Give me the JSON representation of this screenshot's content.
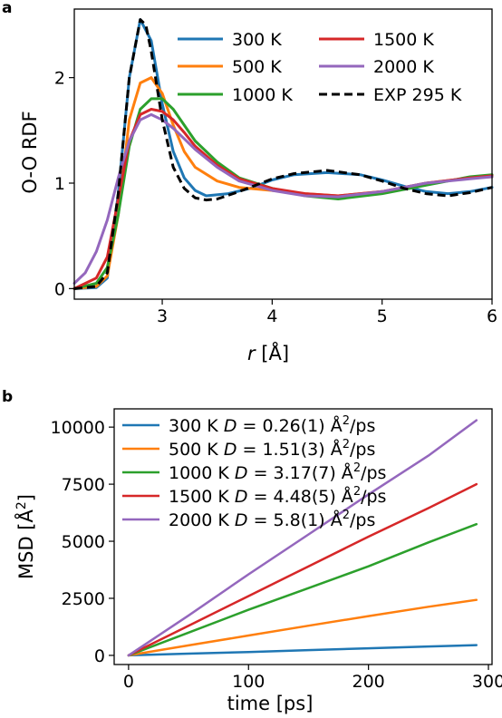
{
  "chart_data": [
    {
      "panel": "a",
      "type": "line",
      "xlabel_italic": "r",
      "xlabel_rest": " [Å]",
      "ylabel": "O-O RDF",
      "xlim": [
        2.2,
        6.0
      ],
      "ylim": [
        -0.1,
        2.65
      ],
      "xticks": [
        3,
        4,
        5,
        6
      ],
      "yticks": [
        0,
        1,
        2
      ],
      "legend_placement": "upper right, two columns",
      "grid": false,
      "series": [
        {
          "name": "300 K",
          "color": "#1f77b4",
          "dash": "",
          "x": [
            2.2,
            2.4,
            2.5,
            2.6,
            2.7,
            2.8,
            2.9,
            3.0,
            3.1,
            3.2,
            3.3,
            3.4,
            3.6,
            3.8,
            4.0,
            4.2,
            4.5,
            4.8,
            5.0,
            5.2,
            5.4,
            5.6,
            5.8,
            6.0
          ],
          "y": [
            0,
            0.01,
            0.1,
            0.9,
            2.0,
            2.55,
            2.35,
            1.75,
            1.3,
            1.05,
            0.93,
            0.88,
            0.9,
            0.95,
            1.03,
            1.08,
            1.1,
            1.08,
            1.03,
            0.97,
            0.92,
            0.9,
            0.92,
            0.96
          ]
        },
        {
          "name": "500 K",
          "color": "#ff7f0e",
          "dash": "",
          "x": [
            2.2,
            2.4,
            2.5,
            2.6,
            2.7,
            2.8,
            2.9,
            3.0,
            3.1,
            3.2,
            3.3,
            3.5,
            3.7,
            4.0,
            4.3,
            4.6,
            5.0,
            5.4,
            5.8,
            6.0
          ],
          "y": [
            0,
            0.02,
            0.12,
            0.7,
            1.6,
            1.95,
            2.0,
            1.85,
            1.55,
            1.3,
            1.15,
            1.02,
            0.96,
            0.93,
            0.9,
            0.88,
            0.92,
            1.0,
            1.05,
            1.06
          ]
        },
        {
          "name": "1000 K",
          "color": "#2ca02c",
          "dash": "",
          "x": [
            2.2,
            2.4,
            2.5,
            2.6,
            2.7,
            2.8,
            2.9,
            3.0,
            3.1,
            3.2,
            3.3,
            3.5,
            3.7,
            4.0,
            4.3,
            4.6,
            5.0,
            5.4,
            5.8,
            6.0
          ],
          "y": [
            0,
            0.05,
            0.2,
            0.7,
            1.35,
            1.7,
            1.8,
            1.8,
            1.7,
            1.55,
            1.4,
            1.2,
            1.05,
            0.95,
            0.88,
            0.85,
            0.9,
            0.98,
            1.06,
            1.08
          ]
        },
        {
          "name": "1500 K",
          "color": "#d62728",
          "dash": "",
          "x": [
            2.2,
            2.4,
            2.5,
            2.6,
            2.7,
            2.8,
            2.9,
            3.0,
            3.1,
            3.2,
            3.3,
            3.5,
            3.7,
            4.0,
            4.3,
            4.6,
            5.0,
            5.4,
            5.8,
            6.0
          ],
          "y": [
            0,
            0.1,
            0.3,
            0.85,
            1.4,
            1.65,
            1.7,
            1.68,
            1.6,
            1.48,
            1.35,
            1.17,
            1.04,
            0.95,
            0.9,
            0.88,
            0.92,
            1.0,
            1.05,
            1.07
          ]
        },
        {
          "name": "2000 K",
          "color": "#9467bd",
          "dash": "",
          "x": [
            2.2,
            2.3,
            2.4,
            2.5,
            2.6,
            2.7,
            2.8,
            2.9,
            3.0,
            3.1,
            3.2,
            3.3,
            3.5,
            3.7,
            4.0,
            4.3,
            4.6,
            5.0,
            5.4,
            5.8,
            6.0
          ],
          "y": [
            0.05,
            0.15,
            0.35,
            0.65,
            1.05,
            1.4,
            1.6,
            1.65,
            1.6,
            1.52,
            1.42,
            1.32,
            1.15,
            1.02,
            0.93,
            0.88,
            0.87,
            0.92,
            1.0,
            1.04,
            1.06
          ]
        },
        {
          "name": "EXP 295 K",
          "color": "#000000",
          "dash": "9,5",
          "x": [
            2.2,
            2.4,
            2.5,
            2.6,
            2.7,
            2.8,
            2.85,
            2.9,
            3.0,
            3.1,
            3.2,
            3.3,
            3.4,
            3.5,
            3.7,
            4.0,
            4.2,
            4.5,
            4.8,
            5.0,
            5.2,
            5.4,
            5.6,
            5.8,
            6.0
          ],
          "y": [
            0,
            0.02,
            0.15,
            0.9,
            2.0,
            2.55,
            2.5,
            2.25,
            1.6,
            1.15,
            0.95,
            0.86,
            0.84,
            0.85,
            0.92,
            1.04,
            1.09,
            1.12,
            1.08,
            1.02,
            0.95,
            0.9,
            0.88,
            0.91,
            0.96
          ]
        }
      ]
    },
    {
      "panel": "b",
      "type": "line",
      "xlabel": "time [ps]",
      "ylabel": "MSD [Å",
      "ylabel_sup": "2",
      "ylabel_end": "]",
      "xlim": [
        -12,
        303
      ],
      "ylim": [
        -400,
        10800
      ],
      "xticks": [
        0,
        100,
        200,
        300
      ],
      "yticks": [
        0,
        2500,
        5000,
        7500,
        10000
      ],
      "legend_placement": "upper left",
      "grid": false,
      "series": [
        {
          "name": "300 K",
          "color": "#1f77b4",
          "d_value": "0.26(1)",
          "x": [
            0,
            50,
            100,
            150,
            200,
            250,
            290
          ],
          "y": [
            0,
            75,
            150,
            230,
            310,
            390,
            450
          ]
        },
        {
          "name": "500 K",
          "color": "#ff7f0e",
          "d_value": "1.51(3)",
          "x": [
            0,
            50,
            100,
            150,
            200,
            250,
            290
          ],
          "y": [
            0,
            440,
            870,
            1300,
            1720,
            2130,
            2430
          ]
        },
        {
          "name": "1000 K",
          "color": "#2ca02c",
          "d_value": "3.17(7)",
          "x": [
            0,
            50,
            100,
            150,
            200,
            250,
            290
          ],
          "y": [
            0,
            1000,
            2000,
            2950,
            3900,
            4950,
            5750
          ]
        },
        {
          "name": "1500 K",
          "color": "#d62728",
          "d_value": "4.48(5)",
          "x": [
            0,
            50,
            100,
            150,
            200,
            250,
            290
          ],
          "y": [
            0,
            1300,
            2600,
            3900,
            5200,
            6450,
            7500
          ]
        },
        {
          "name": "2000 K",
          "color": "#9467bd",
          "d_value": "5.8(1)",
          "x": [
            0,
            50,
            100,
            150,
            200,
            250,
            290
          ],
          "y": [
            0,
            1750,
            3550,
            5300,
            7050,
            8750,
            10300
          ]
        }
      ],
      "legend_d_symbol": "D",
      "legend_equals": " = ",
      "legend_unit": " Å",
      "legend_unit_sup": "2",
      "legend_unit_end": "/ps"
    }
  ]
}
